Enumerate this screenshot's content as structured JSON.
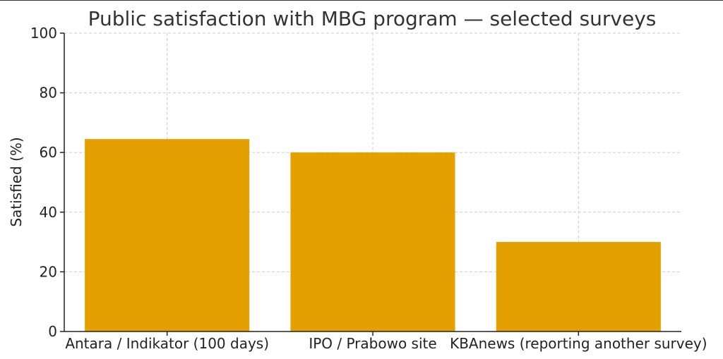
{
  "chart_data": {
    "type": "bar",
    "title": "Public satisfaction with MBG program — selected surveys",
    "xlabel": "",
    "ylabel": "Satisfied (%)",
    "categories": [
      "Antara / Indikator (100 days)",
      "IPO / Prabowo site",
      "KBAnews (reporting another survey)"
    ],
    "values": [
      64.5,
      60,
      30
    ],
    "ylim": [
      0,
      100
    ],
    "yticks": [
      0,
      20,
      40,
      60,
      80,
      100
    ],
    "grid": true,
    "bar_color": "#e3a000",
    "legend": "none"
  }
}
